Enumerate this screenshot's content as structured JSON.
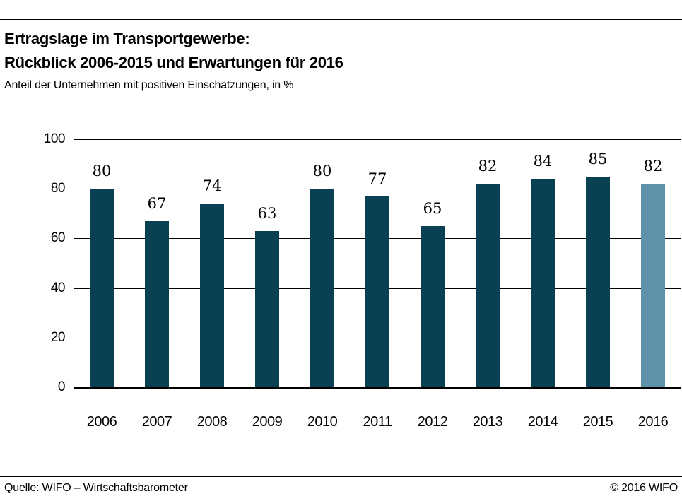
{
  "header": {
    "title_line1": "Ertragslage im Transportgewerbe:",
    "title_line2": "Rückblick 2006-2015 und Erwartungen für 2016",
    "subtitle": "Anteil der Unternehmen mit positiven Einschätzungen, in %"
  },
  "footer": {
    "source": "Quelle: WIFO – Wirtschaftsbarometer",
    "copyright": "© 2016 WIFO"
  },
  "chart_data": {
    "type": "bar",
    "title": "Ertragslage im Transportgewerbe: Rückblick 2006-2015 und Erwartungen für 2016",
    "subtitle": "Anteil der Unternehmen mit positiven Einschätzungen, in %",
    "categories": [
      "2006",
      "2007",
      "2008",
      "2009",
      "2010",
      "2011",
      "2012",
      "2013",
      "2014",
      "2015",
      "2016"
    ],
    "values": [
      80,
      67,
      74,
      63,
      80,
      77,
      65,
      82,
      84,
      85,
      82
    ],
    "xlabel": "",
    "ylabel": "",
    "ylim": [
      0,
      100
    ],
    "yticks": [
      0,
      20,
      40,
      60,
      80,
      100
    ],
    "grid": "horizontal",
    "legend": "none",
    "data_labels": true,
    "colors": {
      "bar_default": "#0a4152",
      "bar_forecast": "#5d92a8"
    },
    "forecast_index": 10
  }
}
